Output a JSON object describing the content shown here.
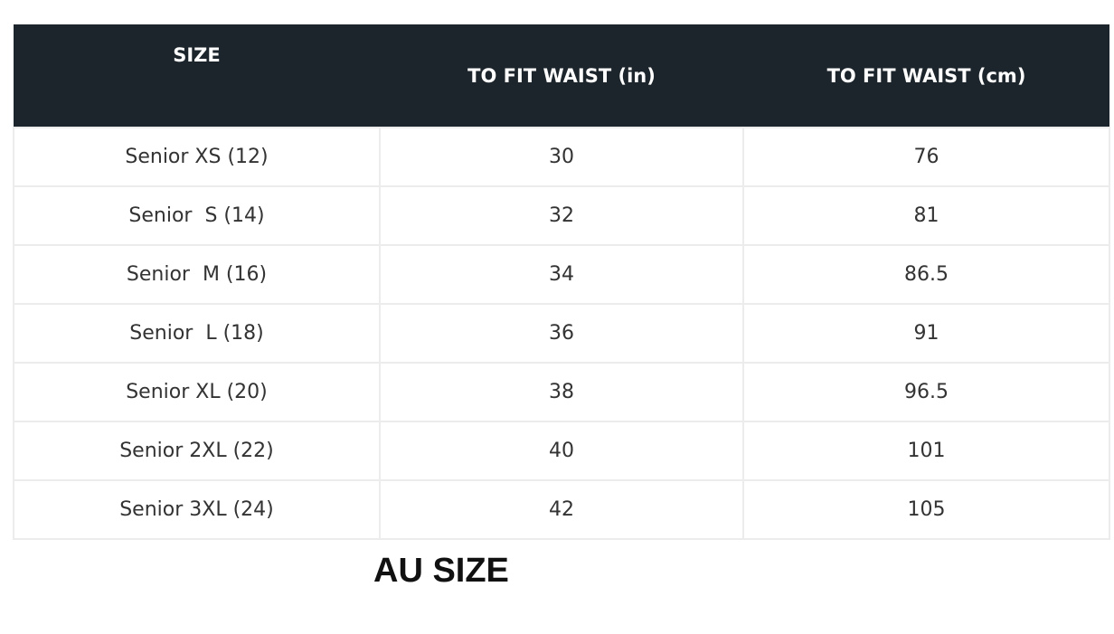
{
  "table": {
    "headers": [
      "SIZE",
      "TO FIT WAIST (in)",
      "TO FIT WAIST (cm)"
    ],
    "rows": [
      [
        "Senior XS (12)",
        "30",
        "76"
      ],
      [
        "Senior  S (14)",
        "32",
        "81"
      ],
      [
        "Senior  M (16)",
        "34",
        "86.5"
      ],
      [
        "Senior  L (18)",
        "36",
        "91"
      ],
      [
        "Senior XL (20)",
        "38",
        "96.5"
      ],
      [
        "Senior 2XL (22)",
        "40",
        "101"
      ],
      [
        "Senior 3XL (24)",
        "42",
        "105"
      ]
    ]
  },
  "caption": "AU SIZE",
  "colors": {
    "header_bg": "#1c252b",
    "header_text": "#ffffff",
    "border": "#ececec"
  }
}
